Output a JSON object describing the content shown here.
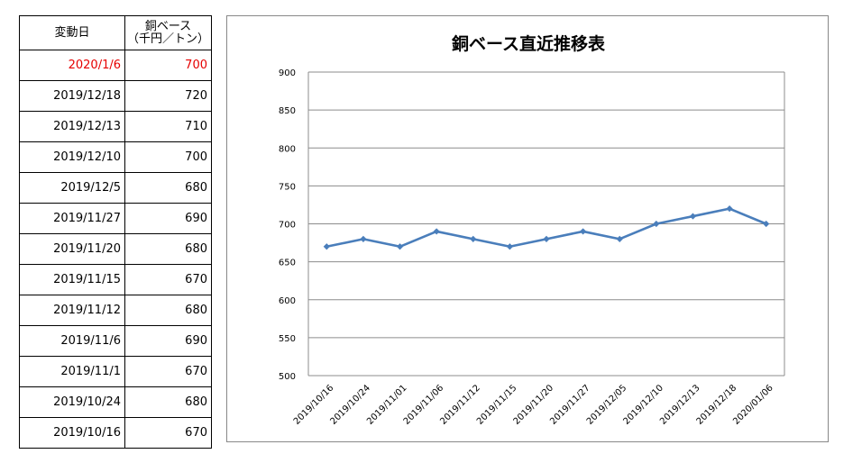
{
  "table": {
    "header": {
      "date_label": "変動日",
      "price_label_line1": "銅ベース",
      "price_label_line2": "（千円／トン）"
    },
    "rows": [
      {
        "date": "2020/1/6",
        "price": "700"
      },
      {
        "date": "2019/12/18",
        "price": "720"
      },
      {
        "date": "2019/12/13",
        "price": "710"
      },
      {
        "date": "2019/12/10",
        "price": "700"
      },
      {
        "date": "2019/12/5",
        "price": "680"
      },
      {
        "date": "2019/11/27",
        "price": "690"
      },
      {
        "date": "2019/11/20",
        "price": "680"
      },
      {
        "date": "2019/11/15",
        "price": "670"
      },
      {
        "date": "2019/11/12",
        "price": "680"
      },
      {
        "date": "2019/11/6",
        "price": "690"
      },
      {
        "date": "2019/11/1",
        "price": "670"
      },
      {
        "date": "2019/10/24",
        "price": "680"
      },
      {
        "date": "2019/10/16",
        "price": "670"
      }
    ],
    "highlight_color": "#e60000"
  },
  "chart_data": {
    "type": "line",
    "title": "銅ベース直近推移表",
    "categories": [
      "2019/10/16",
      "2019/10/24",
      "2019/11/01",
      "2019/11/06",
      "2019/11/12",
      "2019/11/15",
      "2019/11/20",
      "2019/11/27",
      "2019/12/05",
      "2019/12/10",
      "2019/12/13",
      "2019/12/18",
      "2020/01/06"
    ],
    "series": [
      {
        "values": [
          670,
          680,
          670,
          690,
          680,
          670,
          680,
          690,
          680,
          700,
          710,
          720,
          700
        ],
        "color": "#4a7ebb",
        "marker": "diamond"
      }
    ],
    "ylim": [
      500,
      900
    ],
    "yticks": [
      500,
      550,
      600,
      650,
      700,
      750,
      800,
      850,
      900
    ],
    "grid": true,
    "xlabel": "",
    "ylabel": ""
  }
}
